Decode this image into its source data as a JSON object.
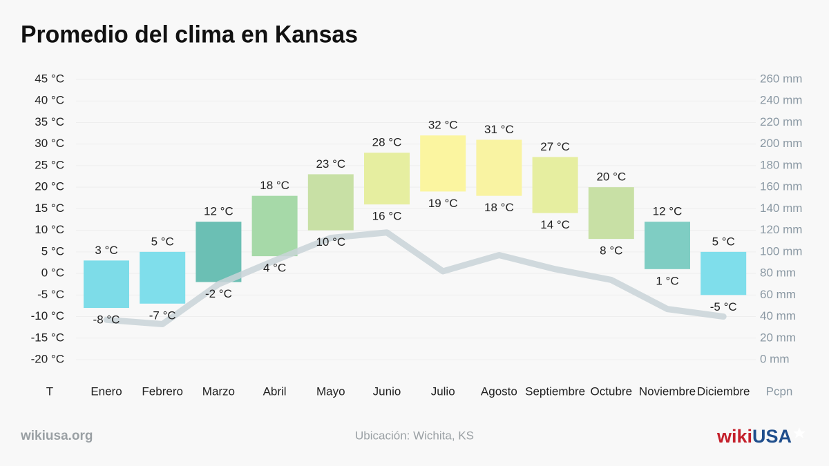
{
  "chart_data": {
    "type": "bar",
    "title": "Promedio del clima en Kansas",
    "categories": [
      "Enero",
      "Febrero",
      "Marzo",
      "Abril",
      "Mayo",
      "Junio",
      "Julio",
      "Agosto",
      "Septiembre",
      "Octubre",
      "Noviembre",
      "Diciembre"
    ],
    "colors": [
      "#7ddce8",
      "#7fdeeb",
      "#6bbfb4",
      "#a6d9a8",
      "#c8e0a5",
      "#e6eea0",
      "#fbf5a0",
      "#f9f3a2",
      "#e6eea0",
      "#c8e0a5",
      "#7fcdc3",
      "#7fdeeb"
    ],
    "series": [
      {
        "values": [
          3,
          5,
          12,
          18,
          23,
          28,
          32,
          31,
          27,
          20,
          12,
          5
        ],
        "value_labels": [
          "3 °C",
          "5 °C",
          "12 °C",
          "18 °C",
          "23 °C",
          "28 °C",
          "32 °C",
          "31 °C",
          "27 °C",
          "20 °C",
          "12 °C",
          "5 °C"
        ]
      },
      {
        "values": [
          -8,
          -7,
          -2,
          4,
          10,
          16,
          19,
          18,
          14,
          8,
          1,
          -5
        ],
        "value_labels": [
          "-8 °C",
          "-7 °C",
          "-2 °C",
          "4 °C",
          "10 °C",
          "16 °C",
          "19 °C",
          "18 °C",
          "14 °C",
          "8 °C",
          "1 °C",
          "-5 °C"
        ]
      },
      {
        "type": "line",
        "axis": "y2",
        "color": "#c9d3d8",
        "values": [
          37,
          33,
          70,
          92,
          113,
          118,
          82,
          97,
          84,
          74,
          47,
          40
        ]
      }
    ],
    "ylim": [
      -20,
      45
    ],
    "yticks": [
      {
        "value": -20,
        "label": "-20 °C"
      },
      {
        "value": -15,
        "label": "-15 °C"
      },
      {
        "value": -10,
        "label": "-10 °C"
      },
      {
        "value": -5,
        "label": "-5 °C"
      },
      {
        "value": 0,
        "label": "0 °C"
      },
      {
        "value": 5,
        "label": "5 °C"
      },
      {
        "value": 10,
        "label": "10 °C"
      },
      {
        "value": 15,
        "label": "15 °C"
      },
      {
        "value": 20,
        "label": "20 °C"
      },
      {
        "value": 25,
        "label": "25 °C"
      },
      {
        "value": 30,
        "label": "30 °C"
      },
      {
        "value": 35,
        "label": "35 °C"
      },
      {
        "value": 40,
        "label": "40 °C"
      },
      {
        "value": 45,
        "label": "45 °C"
      }
    ],
    "y2lim": [
      0,
      260
    ],
    "y2ticks": [
      {
        "value": 0,
        "label": "0 mm"
      },
      {
        "value": 20,
        "label": "20 mm"
      },
      {
        "value": 40,
        "label": "40 mm"
      },
      {
        "value": 60,
        "label": "60 mm"
      },
      {
        "value": 80,
        "label": "80 mm"
      },
      {
        "value": 100,
        "label": "100 mm"
      },
      {
        "value": 120,
        "label": "120 mm"
      },
      {
        "value": 140,
        "label": "140 mm"
      },
      {
        "value": 160,
        "label": "160 mm"
      },
      {
        "value": 180,
        "label": "180 mm"
      },
      {
        "value": 200,
        "label": "200 mm"
      },
      {
        "value": 220,
        "label": "220 mm"
      },
      {
        "value": 240,
        "label": "240 mm"
      },
      {
        "value": 260,
        "label": "260 mm"
      }
    ],
    "ylabel": "T",
    "y2label": "Pcpn",
    "grid": true
  },
  "footer": {
    "site": "wikiusa.org",
    "location": "Ubicación: Wichita, KS",
    "logo_a": "wiki",
    "logo_b": "USA"
  }
}
